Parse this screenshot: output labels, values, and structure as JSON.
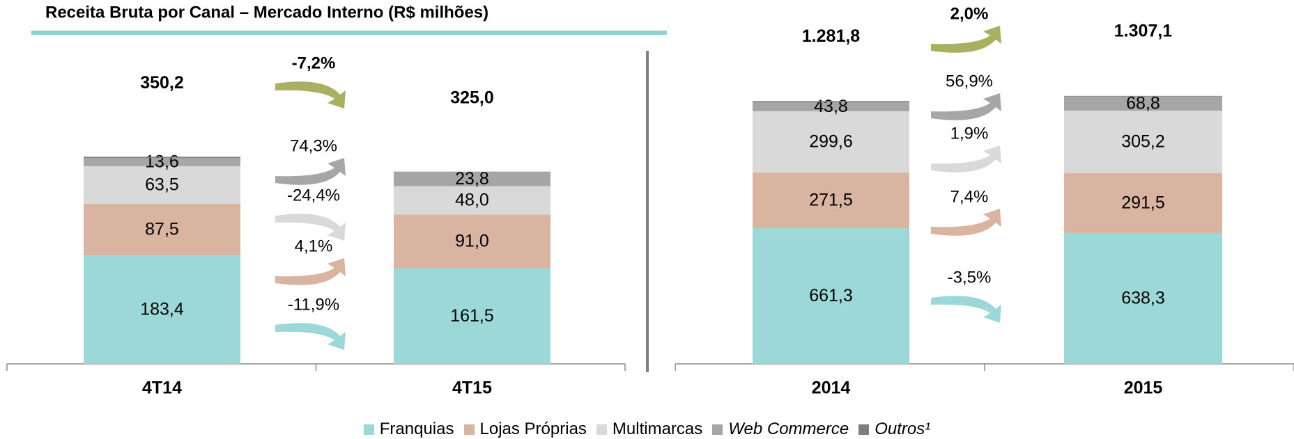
{
  "chart_data": [
    {
      "type": "bar",
      "stacked": true,
      "title": "Receita Bruta por Canal – Mercado Interno (R$ milhões)",
      "categories": [
        "4T14",
        "4T15"
      ],
      "ylim": [
        0,
        400
      ],
      "series": [
        {
          "name": "Franquias",
          "color": "#9dd8d9",
          "values": [
            183.4,
            161.5
          ],
          "value_labels": [
            "183,4",
            "161,5"
          ],
          "change": -11.9,
          "change_label": "-11,9%"
        },
        {
          "name": "Lojas Próprias",
          "color": "#d9b4a0",
          "values": [
            87.5,
            91.0
          ],
          "value_labels": [
            "87,5",
            "91,0"
          ],
          "change": 4.1,
          "change_label": "4,1%"
        },
        {
          "name": "Multimarcas",
          "color": "#d9d9d9",
          "values": [
            63.5,
            48.0
          ],
          "value_labels": [
            "63,5",
            "48,0"
          ],
          "change": -24.4,
          "change_label": "-24,4%"
        },
        {
          "name": "Web Commerce",
          "color": "#a6a6a6",
          "values": [
            13.6,
            23.8
          ],
          "value_labels": [
            "13,6",
            "23,8"
          ],
          "change": 74.3,
          "change_label": "74,3%"
        },
        {
          "name": "Outros¹",
          "color": "#7f7f7f",
          "values": [
            2.2,
            0.7
          ]
        }
      ],
      "totals": [
        350.2,
        325.0
      ],
      "total_labels": [
        "350,2",
        "325,0"
      ],
      "total_change": -7.2,
      "total_change_label": "-7,2%",
      "total_change_color": "#a9b060"
    },
    {
      "type": "bar",
      "stacked": true,
      "categories": [
        "2014",
        "2015"
      ],
      "ylim": [
        0,
        1500
      ],
      "series": [
        {
          "color": "#9dd8d9",
          "values": [
            661.3,
            638.3
          ],
          "value_labels": [
            "661,3",
            "638,3"
          ],
          "change": -3.5,
          "change_label": "-3,5%"
        },
        {
          "color": "#d9b4a0",
          "values": [
            271.5,
            291.5
          ],
          "value_labels": [
            "271,5",
            "291,5"
          ],
          "change": 7.4,
          "change_label": "7,4%"
        },
        {
          "color": "#d9d9d9",
          "values": [
            299.6,
            305.2
          ],
          "value_labels": [
            "299,6",
            "305,2"
          ],
          "change": 1.9,
          "change_label": "1,9%"
        },
        {
          "color": "#a6a6a6",
          "values": [
            43.8,
            68.8
          ],
          "value_labels": [
            "43,8",
            "68,8"
          ],
          "change": 56.9,
          "change_label": "56,9%"
        },
        {
          "color": "#7f7f7f",
          "values": [
            5.6,
            3.3
          ]
        }
      ],
      "totals": [
        1281.8,
        1307.1
      ],
      "total_labels": [
        "1.281,8",
        "1.307,1"
      ],
      "total_change": 2.0,
      "total_change_label": "2,0%",
      "total_change_color": "#a9b060"
    }
  ]
}
